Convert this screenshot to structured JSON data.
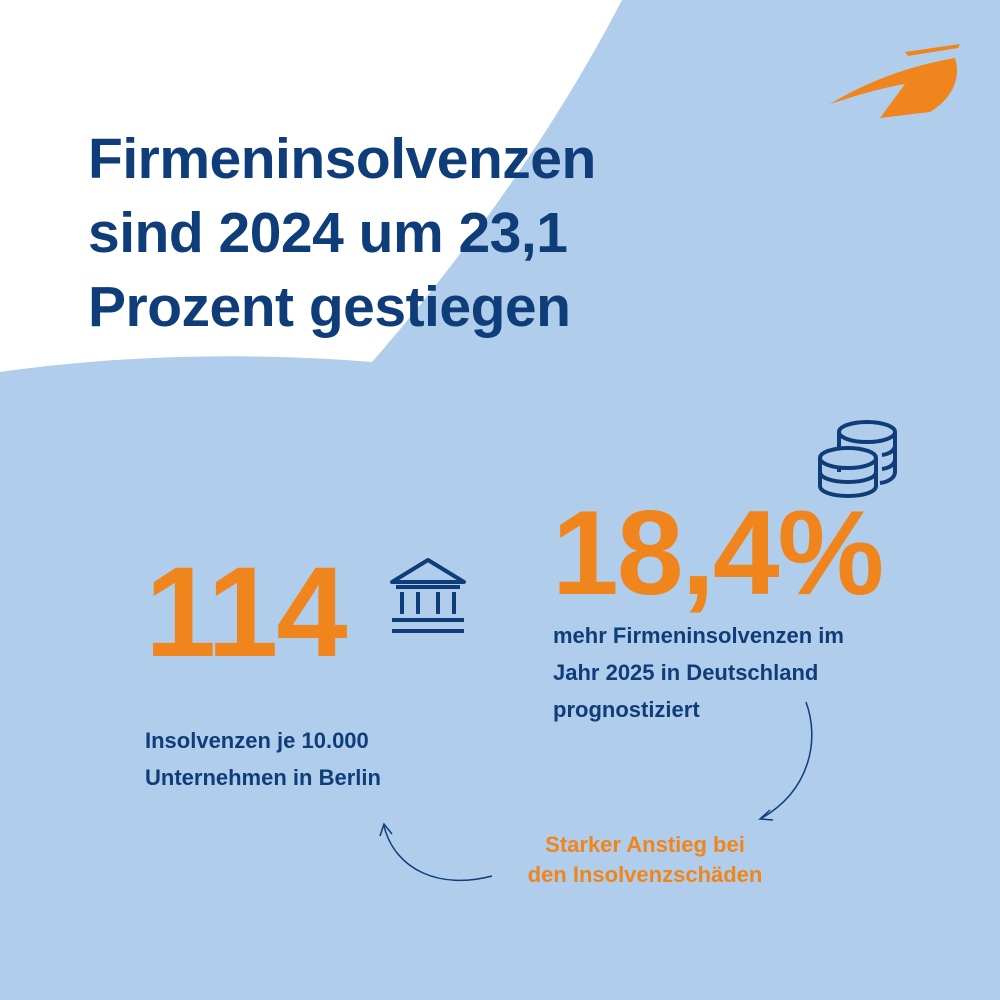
{
  "colors": {
    "background": "#b0cdeb",
    "title": "#0f3d7a",
    "accent": "#ef851c"
  },
  "title": {
    "line1": "Firmeninsolvenzen",
    "line2": "sind 2024 um 23,1",
    "line3": "Prozent gestiegen"
  },
  "stat_berlin": {
    "value": "114",
    "line1": "Insolvenzen je 10.000",
    "line2": "Unternehmen in Berlin",
    "icon": "bank-icon"
  },
  "stat_germany": {
    "value": "18,4%",
    "line1": "mehr Firmeninsolvenzen im",
    "line2": "Jahr 2025 in Deutschland",
    "line3": "prognostiziert",
    "icon": "coins-icon"
  },
  "note": {
    "line1": "Starker Anstieg bei",
    "line2": "den Insolvenzschäden"
  }
}
